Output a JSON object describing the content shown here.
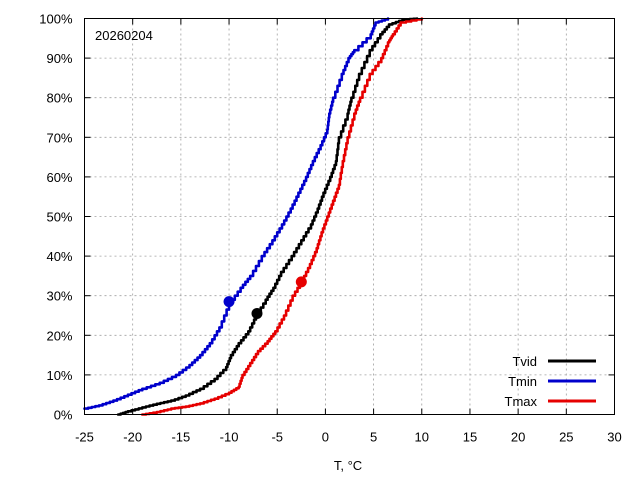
{
  "chart_data": {
    "type": "line",
    "annotation": "20260204",
    "xlabel": "T, °C",
    "ylabel": "",
    "xlim": [
      -25,
      30
    ],
    "ylim": [
      0,
      100
    ],
    "x_ticks": [
      -25,
      -20,
      -15,
      -10,
      -5,
      0,
      5,
      10,
      15,
      20,
      25,
      30
    ],
    "y_ticks": [
      0,
      10,
      20,
      30,
      40,
      50,
      60,
      70,
      80,
      90,
      100
    ],
    "y_tick_labels": [
      "0%",
      "10%",
      "20%",
      "30%",
      "40%",
      "50%",
      "60%",
      "70%",
      "80%",
      "90%",
      "100%"
    ],
    "x_tick_labels": [
      "-25",
      "-20",
      "-15",
      "-10",
      "-5",
      "0",
      "5",
      "10",
      "15",
      "20",
      "25",
      "30"
    ],
    "grid": true,
    "legend_position": "bottom-right",
    "series": [
      {
        "name": "Tvid",
        "color": "#000000",
        "marker": {
          "x": -7.1,
          "y": 25.5
        },
        "points": [
          [
            -21.5,
            0
          ],
          [
            -20.5,
            0.8
          ],
          [
            -19,
            1.8
          ],
          [
            -17.5,
            2.7
          ],
          [
            -16,
            3.5
          ],
          [
            -14.5,
            4.8
          ],
          [
            -13,
            6.5
          ],
          [
            -11.5,
            9
          ],
          [
            -10.3,
            12
          ],
          [
            -9.8,
            15
          ],
          [
            -9,
            18
          ],
          [
            -8,
            21
          ],
          [
            -7.2,
            25
          ],
          [
            -6.2,
            29
          ],
          [
            -5.4,
            32
          ],
          [
            -4.6,
            36
          ],
          [
            -3.5,
            40
          ],
          [
            -2.5,
            44
          ],
          [
            -1.5,
            48
          ],
          [
            -0.8,
            52
          ],
          [
            -0.2,
            56
          ],
          [
            0.5,
            60
          ],
          [
            1.1,
            64
          ],
          [
            1.4,
            70
          ],
          [
            2.3,
            76
          ],
          [
            2.7,
            80
          ],
          [
            3.5,
            86
          ],
          [
            4.6,
            92
          ],
          [
            5.7,
            96
          ],
          [
            6.6,
            98.5
          ],
          [
            8,
            99.7
          ],
          [
            9.5,
            100
          ]
        ]
      },
      {
        "name": "Tmin",
        "color": "#0000cc",
        "marker": {
          "x": -10,
          "y": 28.5
        },
        "points": [
          [
            -25,
            1.5
          ],
          [
            -23.5,
            2.3
          ],
          [
            -22,
            3.5
          ],
          [
            -20.5,
            5
          ],
          [
            -19,
            6.5
          ],
          [
            -17.2,
            8
          ],
          [
            -15.5,
            10
          ],
          [
            -14.1,
            12.5
          ],
          [
            -13,
            15
          ],
          [
            -12,
            18
          ],
          [
            -11,
            22
          ],
          [
            -10,
            28
          ],
          [
            -8.8,
            32
          ],
          [
            -7.8,
            35
          ],
          [
            -6.6,
            40
          ],
          [
            -5.5,
            44
          ],
          [
            -4.5,
            48
          ],
          [
            -3.6,
            52
          ],
          [
            -2.8,
            56
          ],
          [
            -2,
            60
          ],
          [
            -1.3,
            64
          ],
          [
            -0.5,
            68
          ],
          [
            0.2,
            72
          ],
          [
            0.4,
            76
          ],
          [
            0.8,
            80
          ],
          [
            1.7,
            86
          ],
          [
            2.4,
            90
          ],
          [
            3,
            92
          ],
          [
            4.7,
            96
          ],
          [
            5.2,
            99
          ],
          [
            6.5,
            100
          ]
        ]
      },
      {
        "name": "Tmax",
        "color": "#e60000",
        "marker": {
          "x": -2.5,
          "y": 33.5
        },
        "points": [
          [
            -19,
            0
          ],
          [
            -17.5,
            0.6
          ],
          [
            -16,
            1.5
          ],
          [
            -14.5,
            2
          ],
          [
            -13,
            2.8
          ],
          [
            -11.5,
            4
          ],
          [
            -10,
            5.5
          ],
          [
            -9,
            7
          ],
          [
            -8.6,
            10
          ],
          [
            -7.8,
            13
          ],
          [
            -7,
            16
          ],
          [
            -6,
            18.5
          ],
          [
            -5.2,
            21
          ],
          [
            -4.3,
            25
          ],
          [
            -3.4,
            30
          ],
          [
            -2.4,
            34
          ],
          [
            -1.6,
            38
          ],
          [
            -0.9,
            42
          ],
          [
            -0.4,
            46
          ],
          [
            0.2,
            50
          ],
          [
            0.8,
            54
          ],
          [
            1.4,
            58
          ],
          [
            1.8,
            64
          ],
          [
            2.3,
            70
          ],
          [
            3,
            76
          ],
          [
            3.6,
            80
          ],
          [
            4.6,
            86
          ],
          [
            5.8,
            90
          ],
          [
            6.5,
            94
          ],
          [
            7,
            96
          ],
          [
            7.8,
            99
          ],
          [
            10,
            100
          ]
        ]
      }
    ]
  }
}
